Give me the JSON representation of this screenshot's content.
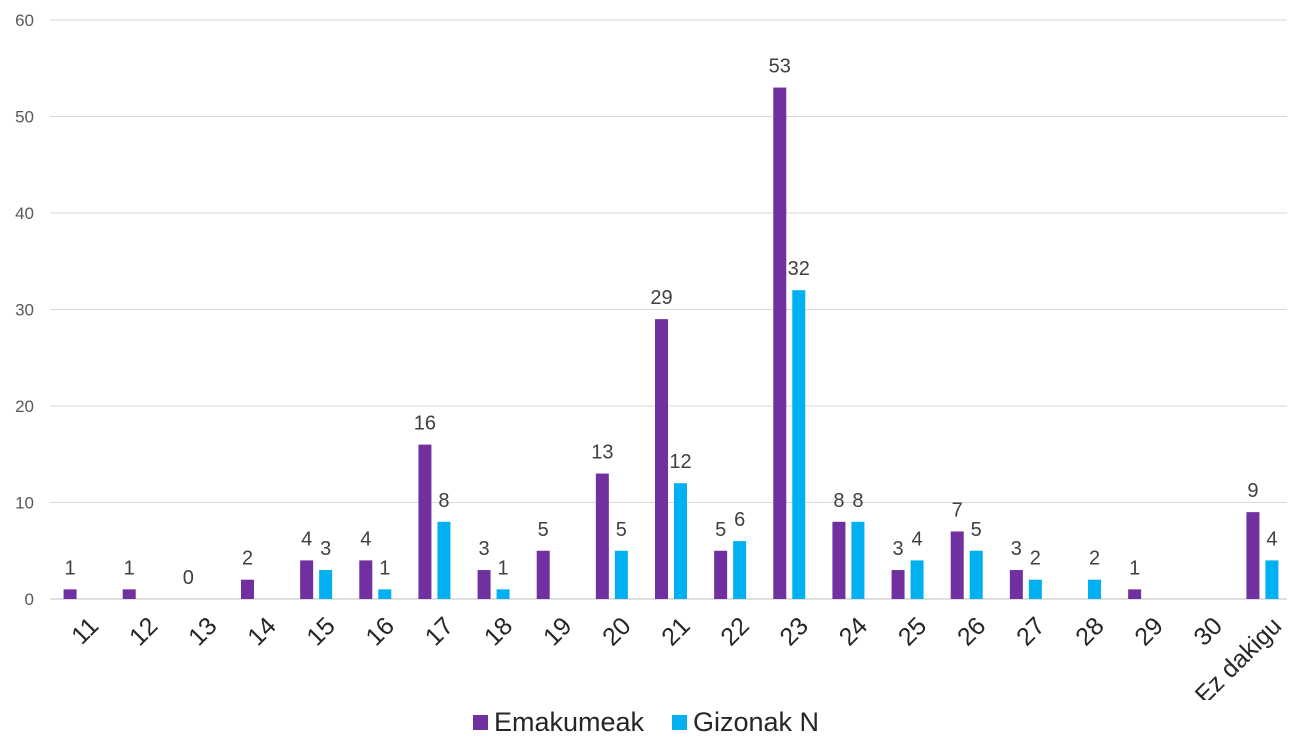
{
  "chart_data": {
    "type": "bar",
    "categories": [
      "11",
      "12",
      "13",
      "14",
      "15",
      "16",
      "17",
      "18",
      "19",
      "20",
      "21",
      "22",
      "23",
      "24",
      "25",
      "26",
      "27",
      "28",
      "29",
      "30",
      "Ez dakigu"
    ],
    "series": [
      {
        "name": "Emakumeak",
        "color": "#7030a0",
        "values": [
          1,
          1,
          0,
          2,
          4,
          4,
          16,
          3,
          5,
          13,
          29,
          5,
          53,
          8,
          3,
          7,
          3,
          null,
          1,
          null,
          9
        ],
        "labels": [
          "1",
          "1",
          "0",
          "2",
          "4",
          "4",
          "16",
          "3",
          "5",
          "13",
          "29",
          "5",
          "53",
          "8",
          "3",
          "7",
          "3",
          "",
          "1",
          "",
          "9"
        ]
      },
      {
        "name": "Gizonak N",
        "color": "#00b0f0",
        "values": [
          null,
          null,
          null,
          null,
          3,
          1,
          8,
          1,
          null,
          5,
          12,
          6,
          32,
          8,
          4,
          5,
          2,
          2,
          null,
          null,
          4
        ],
        "labels": [
          "",
          "",
          "",
          "",
          "3",
          "1",
          "8",
          "1",
          "",
          "5",
          "12",
          "6",
          "32",
          "8",
          "4",
          "5",
          "2",
          "2",
          "",
          "",
          "4"
        ]
      }
    ],
    "yticks": [
      "0",
      "10",
      "20",
      "30",
      "40",
      "50",
      "60"
    ],
    "ylim": [
      0,
      60
    ],
    "grid": true,
    "legend_position": "bottom"
  }
}
